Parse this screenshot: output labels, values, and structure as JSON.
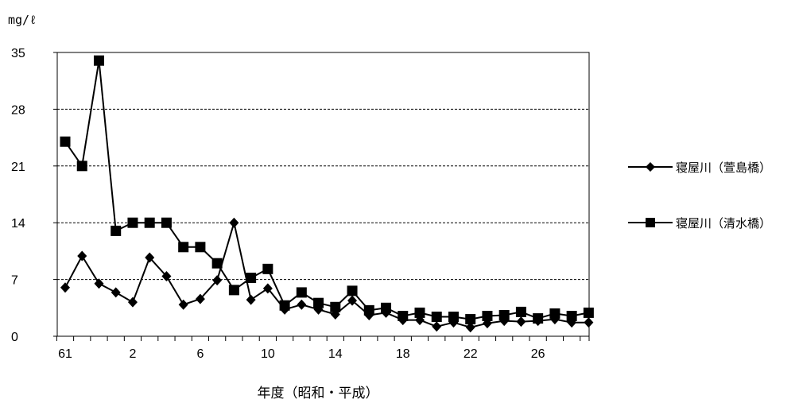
{
  "chart_data": {
    "type": "line",
    "unit_label": "mg/ℓ",
    "xlabel": "年度（昭和・平成）",
    "ylim": [
      0,
      35
    ],
    "yticks": [
      0,
      7,
      14,
      21,
      28,
      35
    ],
    "x_tick_labels": [
      "61",
      "2",
      "6",
      "10",
      "14",
      "18",
      "22",
      "26"
    ],
    "x": [
      "61",
      "62",
      "63",
      "元",
      "2",
      "3",
      "4",
      "5",
      "6",
      "7",
      "8",
      "9",
      "10",
      "11",
      "12",
      "13",
      "14",
      "15",
      "16",
      "17",
      "18",
      "19",
      "20",
      "21",
      "22",
      "23",
      "24",
      "25",
      "26",
      "27",
      "28",
      "29"
    ],
    "grid": "horizontal dashed",
    "legend_position": "right",
    "series": [
      {
        "name": "寝屋川（萱島橋）",
        "marker": "diamond",
        "values": [
          6.0,
          9.9,
          6.5,
          5.4,
          4.2,
          9.7,
          7.4,
          3.9,
          4.6,
          6.9,
          14.0,
          4.5,
          5.9,
          3.3,
          3.9,
          3.3,
          2.7,
          4.4,
          2.6,
          2.9,
          2.0,
          2.0,
          1.2,
          1.7,
          1.1,
          1.6,
          1.9,
          1.8,
          1.9,
          2.1,
          1.7,
          1.7
        ]
      },
      {
        "name": "寝屋川（清水橋）",
        "marker": "square",
        "values": [
          24.0,
          21.0,
          34.0,
          13.0,
          14.0,
          14.0,
          14.0,
          11.0,
          11.0,
          9.0,
          5.7,
          7.2,
          8.3,
          3.8,
          5.4,
          4.1,
          3.6,
          5.6,
          3.2,
          3.5,
          2.5,
          2.9,
          2.4,
          2.4,
          2.1,
          2.5,
          2.6,
          3.0,
          2.2,
          2.8,
          2.5,
          2.9
        ]
      }
    ],
    "colors": {
      "line": "#000000",
      "grid": "#000000",
      "background": "#ffffff"
    }
  }
}
